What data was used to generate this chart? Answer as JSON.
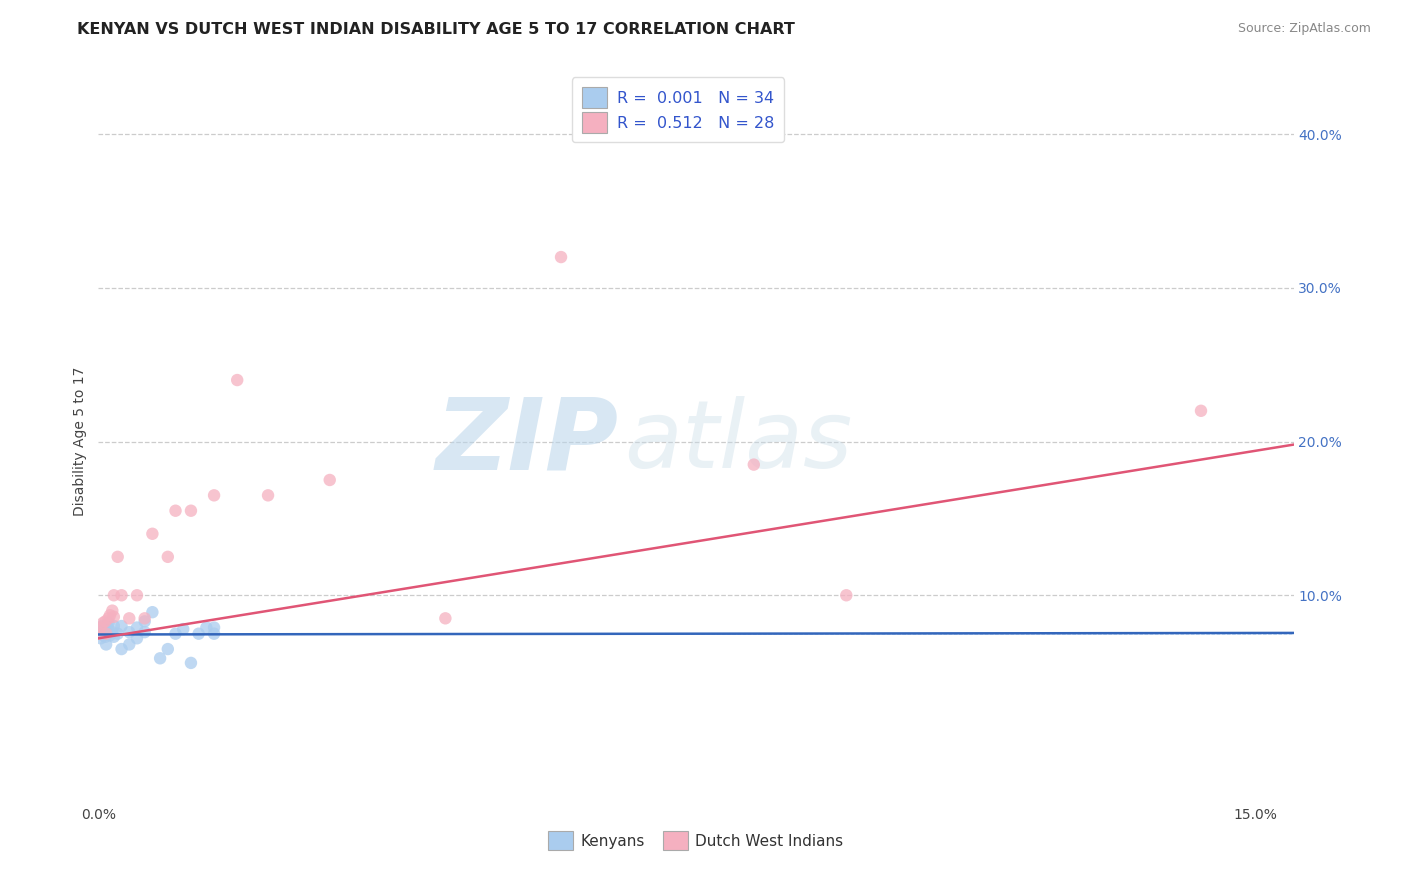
{
  "title": "KENYAN VS DUTCH WEST INDIAN DISABILITY AGE 5 TO 17 CORRELATION CHART",
  "source": "Source: ZipAtlas.com",
  "xlim": [
    0.0,
    0.155
  ],
  "ylim": [
    -0.035,
    0.435
  ],
  "ylabel": "Disability Age 5 to 17",
  "legend_r1": "R =  0.001   N = 34",
  "legend_r2": "R =  0.512   N = 28",
  "kenyan_color": "#aaccee",
  "dutch_color": "#f5b0c0",
  "kenyan_line_color": "#3366bb",
  "dutch_line_color": "#e05575",
  "background_color": "#ffffff",
  "grid_color": "#cccccc",
  "title_fontsize": 11.5,
  "label_fontsize": 10,
  "tick_fontsize": 10,
  "kenyan_x": [
    0.0002,
    0.0003,
    0.0005,
    0.0006,
    0.0007,
    0.0008,
    0.0009,
    0.001,
    0.001,
    0.0012,
    0.0013,
    0.0015,
    0.0018,
    0.002,
    0.002,
    0.0025,
    0.003,
    0.003,
    0.004,
    0.004,
    0.005,
    0.005,
    0.006,
    0.006,
    0.007,
    0.008,
    0.009,
    0.01,
    0.011,
    0.012,
    0.013,
    0.014,
    0.015,
    0.015
  ],
  "kenyan_y": [
    0.075,
    0.072,
    0.08,
    0.074,
    0.077,
    0.078,
    0.073,
    0.076,
    0.068,
    0.079,
    0.082,
    0.074,
    0.076,
    0.08,
    0.073,
    0.075,
    0.065,
    0.08,
    0.068,
    0.076,
    0.079,
    0.072,
    0.083,
    0.076,
    0.089,
    0.059,
    0.065,
    0.075,
    0.078,
    0.056,
    0.075,
    0.079,
    0.079,
    0.075
  ],
  "dutch_x": [
    0.0001,
    0.0003,
    0.0006,
    0.0009,
    0.001,
    0.0013,
    0.0015,
    0.0018,
    0.002,
    0.002,
    0.0025,
    0.003,
    0.004,
    0.005,
    0.006,
    0.007,
    0.009,
    0.01,
    0.012,
    0.015,
    0.018,
    0.022,
    0.03,
    0.045,
    0.06,
    0.085,
    0.097,
    0.143
  ],
  "dutch_y": [
    0.075,
    0.079,
    0.082,
    0.083,
    0.075,
    0.085,
    0.087,
    0.09,
    0.1,
    0.086,
    0.125,
    0.1,
    0.085,
    0.1,
    0.085,
    0.14,
    0.125,
    0.155,
    0.155,
    0.165,
    0.24,
    0.165,
    0.175,
    0.085,
    0.32,
    0.185,
    0.1,
    0.22
  ],
  "kenyan_trend_y0": 0.0745,
  "kenyan_trend_y1": 0.0755,
  "dutch_trend_y0": 0.072,
  "dutch_trend_y1": 0.198,
  "ytick_vals": [
    0.1,
    0.2,
    0.3,
    0.4
  ],
  "ytick_labels": [
    "10.0%",
    "20.0%",
    "30.0%",
    "40.0%"
  ],
  "xtick_vals": [
    0.0,
    0.15
  ],
  "xtick_labels": [
    "0.0%",
    "15.0%"
  ]
}
